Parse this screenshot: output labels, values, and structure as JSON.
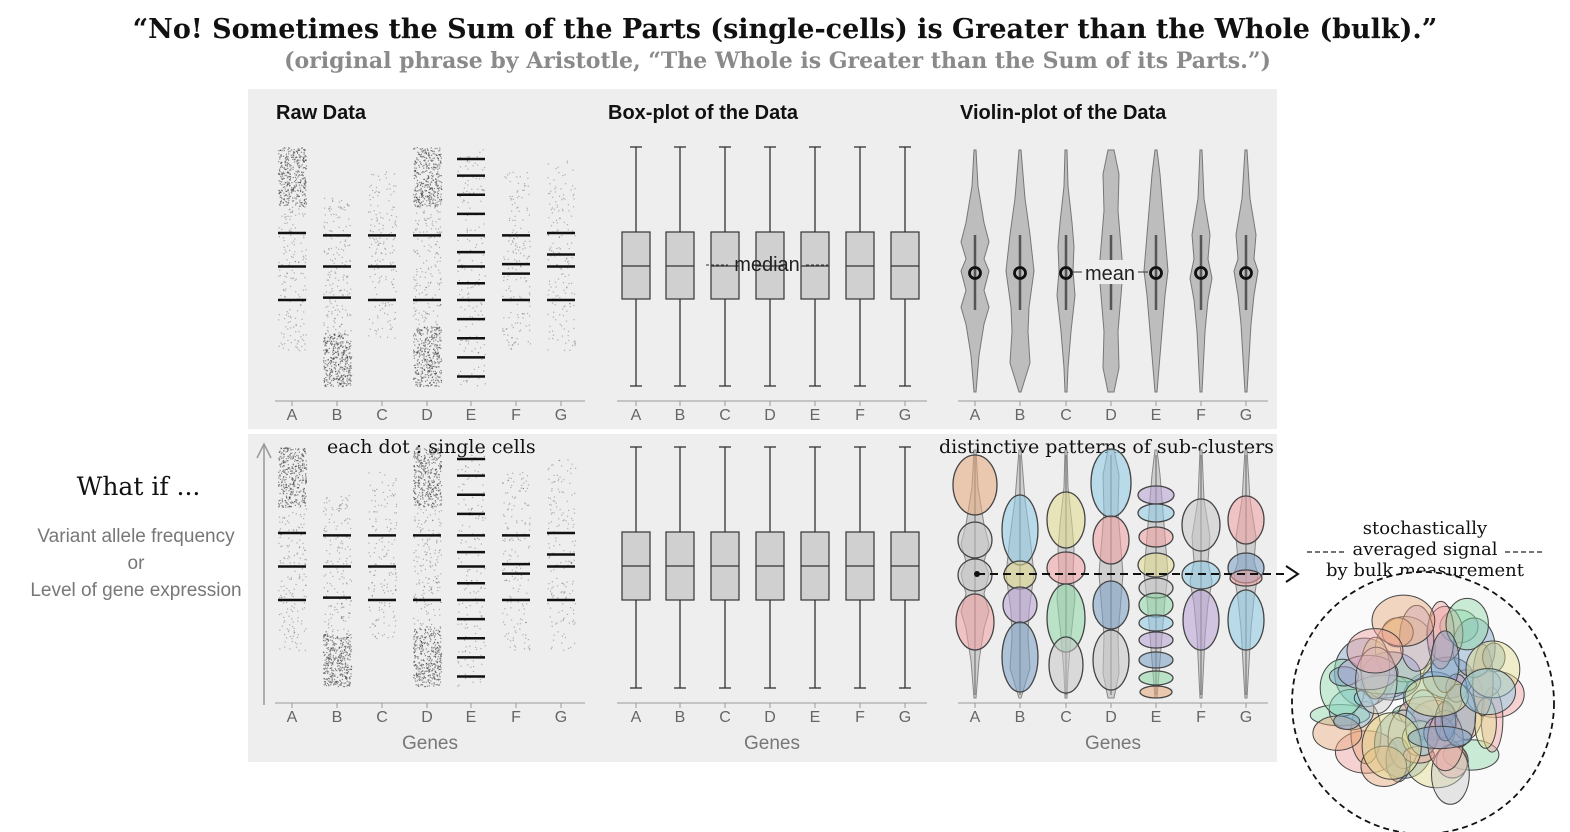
{
  "title": "“No! Sometimes the Sum of the Parts (single-cells) is Greater than the Whole (bulk).”",
  "subtitle": "(original phrase by Aristotle, “The Whole is Greater than the Sum of its Parts.”)",
  "panels": {
    "raw_title": "Raw Data",
    "box_title": "Box-plot of the Data",
    "violin_title": "Violin-plot of the Data"
  },
  "categories": [
    "A",
    "B",
    "C",
    "D",
    "E",
    "F",
    "G"
  ],
  "xlabel": "Genes",
  "side": {
    "what_if": "What if ...",
    "ylabel_line1": "Variant allele frequency",
    "ylabel_line2": "or",
    "ylabel_line3": "Level of gene expression"
  },
  "annotations": {
    "median": "median",
    "mean": "mean",
    "each_dot": "each dot : single cells",
    "sub_clusters": "distinctive patterns of sub-clusters",
    "stoch_line1": "stochastically",
    "stoch_line2": "averaged signal",
    "stoch_line3": "by bulk measurement"
  },
  "colors": {
    "panel_bg": "#eeeeee",
    "box_fill": "#d0d0d0",
    "violin_fill": "#bdbdbd",
    "cluster_colors": [
      "#e8a87c",
      "#8ccbe6",
      "#e3dd8e",
      "#8fd9a8",
      "#b8a2d6",
      "#f0a0a0",
      "#c9c9c9",
      "#7aa0c4"
    ]
  }
}
